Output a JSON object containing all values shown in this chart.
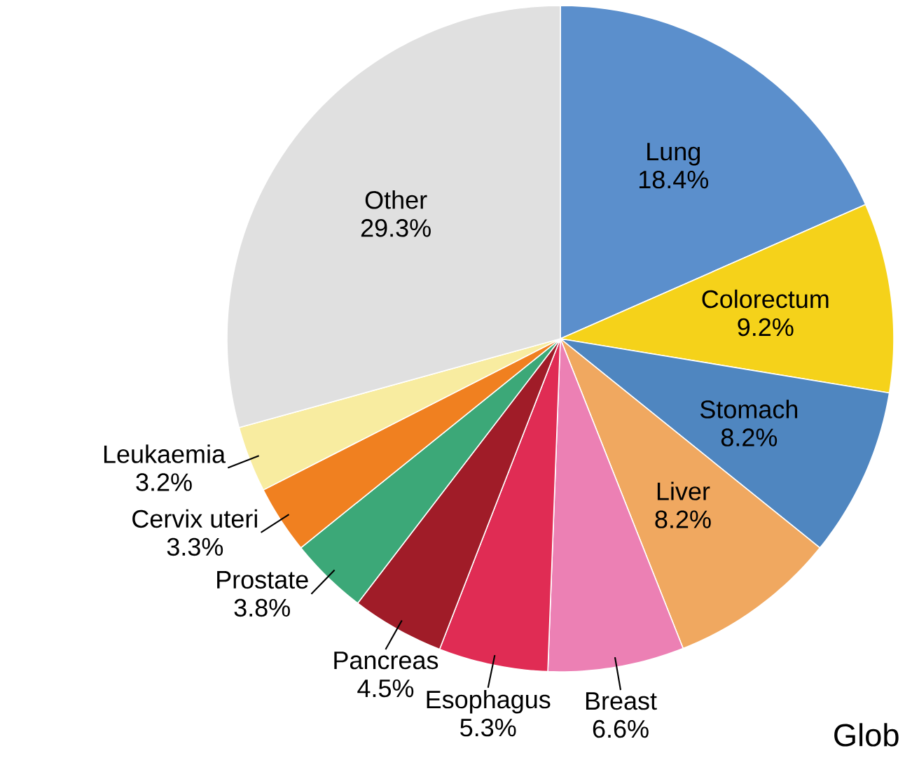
{
  "chart_data": {
    "type": "pie",
    "categories": [
      "Lung",
      "Colorectum",
      "Stomach",
      "Liver",
      "Breast",
      "Esophagus",
      "Pancreas",
      "Prostate",
      "Cervix uteri",
      "Leukaemia",
      "Other"
    ],
    "values": [
      18.4,
      9.2,
      8.2,
      8.2,
      6.6,
      5.3,
      4.5,
      3.8,
      3.3,
      3.2,
      29.3
    ],
    "value_labels": [
      "18.4%",
      "9.2%",
      "8.2%",
      "8.2%",
      "6.6%",
      "5.3%",
      "4.5%",
      "3.8%",
      "3.3%",
      "3.2%",
      "29.3%"
    ],
    "colors": [
      "#5b8fcc",
      "#f5d21a",
      "#4f86c0",
      "#f0a860",
      "#ec80b4",
      "#e02c54",
      "#a01c28",
      "#3ca878",
      "#f08020",
      "#f8eca0",
      "#e0e0e0"
    ],
    "annotations": [
      "Glob"
    ]
  }
}
